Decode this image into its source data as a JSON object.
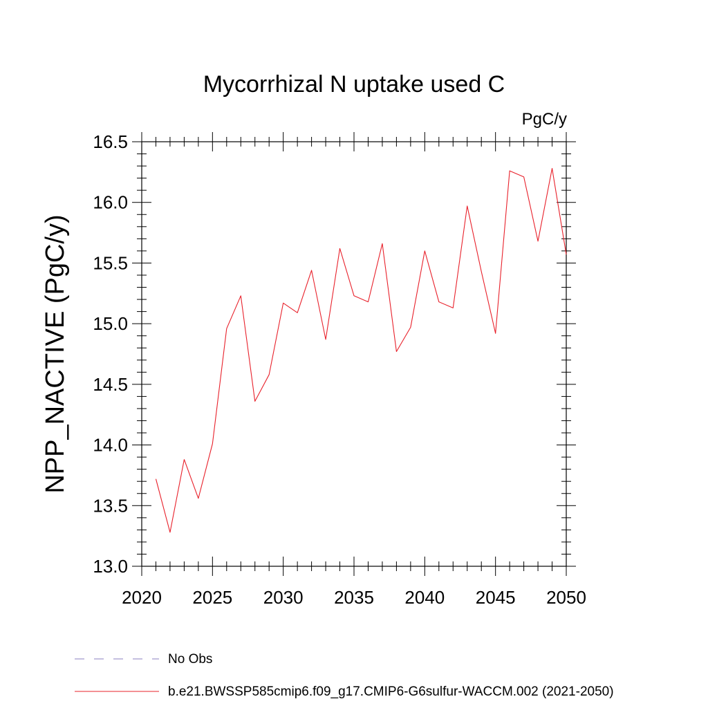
{
  "chart_data": {
    "type": "line",
    "title": "Mycorrhizal N uptake used C",
    "units_label": "PgC/y",
    "ylabel": "NPP_NACTIVE  (PgC/y)",
    "xlabel": "",
    "xlim": [
      2020,
      2050
    ],
    "ylim": [
      13.0,
      16.5
    ],
    "x_ticks": [
      2020,
      2025,
      2030,
      2035,
      2040,
      2045,
      2050
    ],
    "y_ticks": [
      13.0,
      13.5,
      14.0,
      14.5,
      15.0,
      15.5,
      16.0,
      16.5
    ],
    "x_tick_labels": [
      "2020",
      "2025",
      "2030",
      "2035",
      "2040",
      "2045",
      "2050"
    ],
    "y_tick_labels": [
      "13.0",
      "13.5",
      "14.0",
      "14.5",
      "15.0",
      "15.5",
      "16.0",
      "16.5"
    ],
    "grid": false,
    "series": [
      {
        "name": "b.e21.BWSSP585cmip6.f09_g17.CMIP6-G6sulfur-WACCM.002 (2021-2050)",
        "color": "#e8202a",
        "x": [
          2021,
          2022,
          2023,
          2024,
          2025,
          2026,
          2027,
          2028,
          2029,
          2030,
          2031,
          2032,
          2033,
          2034,
          2035,
          2036,
          2037,
          2038,
          2039,
          2040,
          2041,
          2042,
          2043,
          2044,
          2045,
          2046,
          2047,
          2048,
          2049,
          2050
        ],
        "values": [
          13.72,
          13.28,
          13.88,
          13.56,
          14.01,
          14.96,
          15.23,
          14.36,
          14.58,
          15.17,
          15.09,
          15.44,
          14.87,
          15.62,
          15.23,
          15.18,
          15.66,
          14.77,
          14.97,
          15.6,
          15.18,
          15.13,
          15.97,
          15.43,
          14.92,
          16.26,
          16.21,
          15.68,
          16.28,
          15.57
        ]
      }
    ],
    "legend": {
      "placement": "bottom-left",
      "entries": [
        {
          "label": "No Obs",
          "color": "#8a7fc0",
          "style": "dashed"
        },
        {
          "label": "b.e21.BWSSP585cmip6.f09_g17.CMIP6-G6sulfur-WACCM.002 (2021-2050)",
          "color": "#e8202a",
          "style": "solid"
        }
      ]
    }
  }
}
